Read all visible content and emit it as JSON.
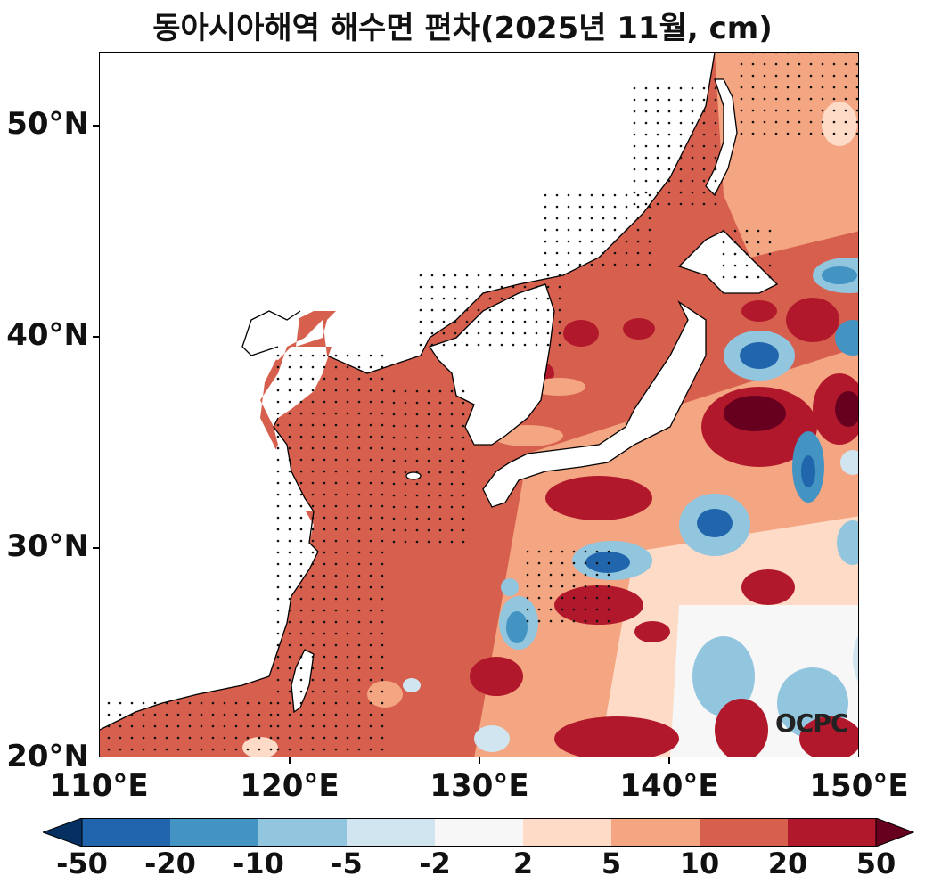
{
  "title": "동아시아해역 해수면 편차(2025년 11월, cm)",
  "logo_text": "OCPC",
  "map": {
    "lat_ticks": [
      "50°N",
      "40°N",
      "30°N",
      "20°N"
    ],
    "lon_ticks": [
      "110°E",
      "120°E",
      "130°E",
      "140°E",
      "150°E"
    ],
    "lon_range": [
      110,
      150
    ],
    "lat_range": [
      20,
      53.5
    ]
  },
  "colorbar": {
    "labels": [
      "-50",
      "-20",
      "-10",
      "-5",
      "-2",
      "2",
      "5",
      "10",
      "20",
      "50"
    ],
    "colors": [
      "#053061",
      "#2166ac",
      "#4393c3",
      "#92c5de",
      "#d1e5f0",
      "#f7f7f7",
      "#fddbc7",
      "#f4a582",
      "#d6604d",
      "#b2182b",
      "#67001f"
    ]
  }
}
